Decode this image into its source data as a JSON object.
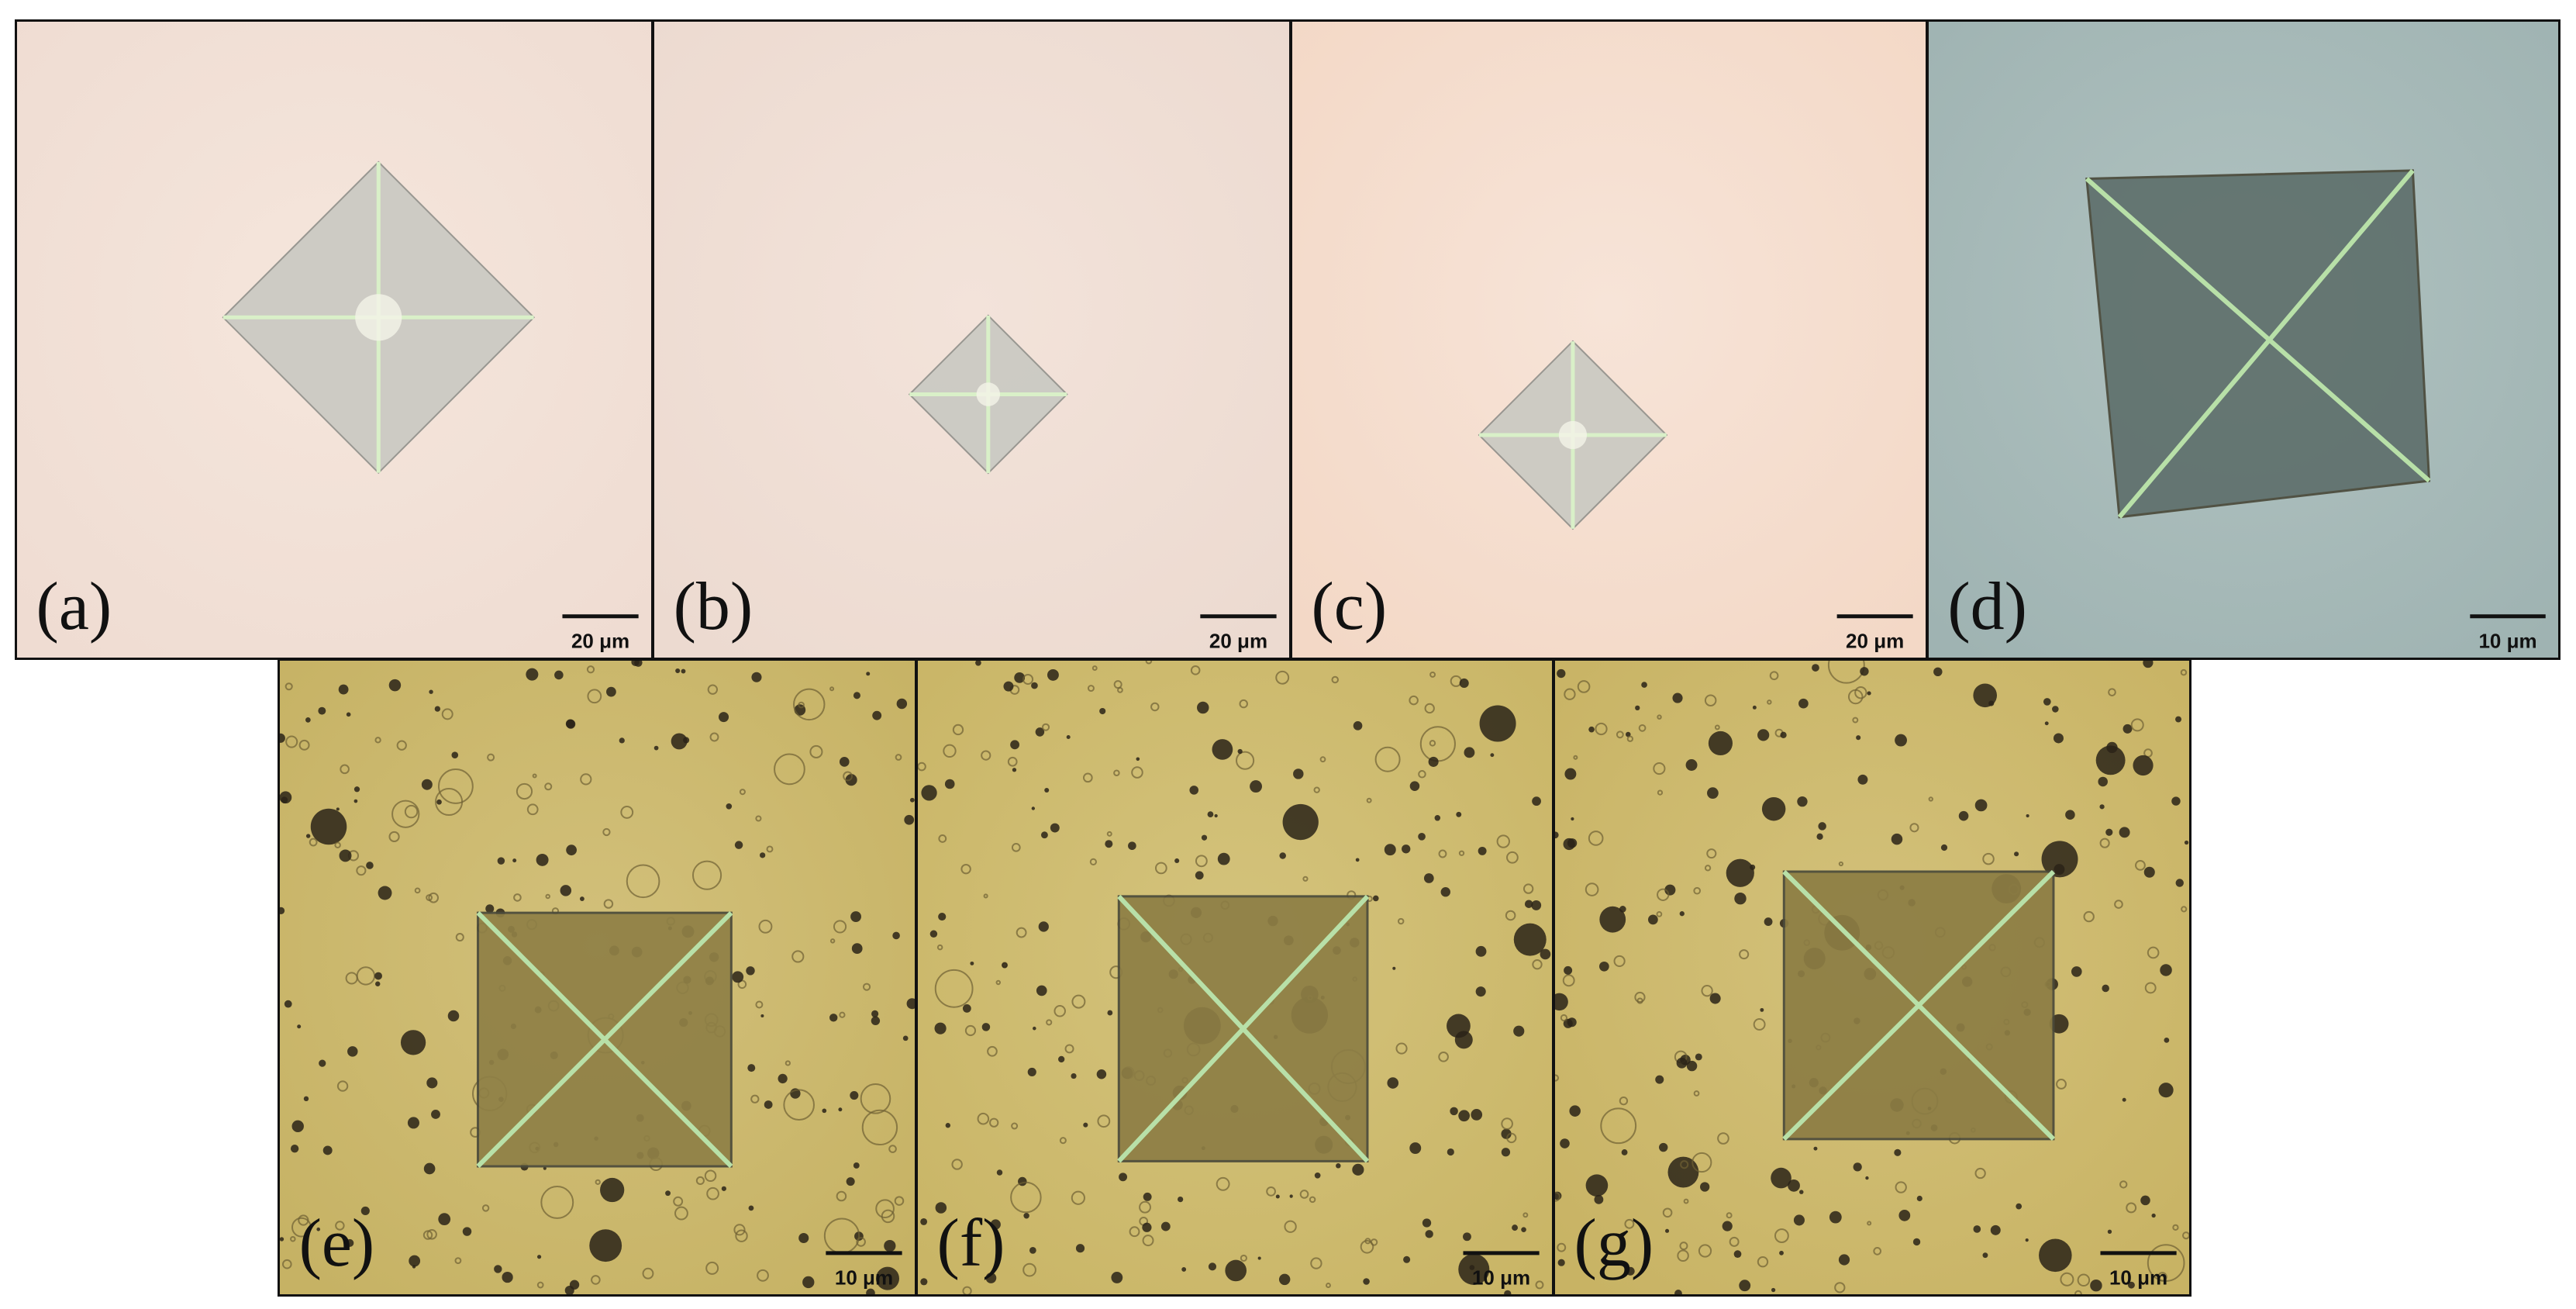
{
  "panels": [
    {
      "label": "(a)",
      "scale_bar": "20 μm"
    },
    {
      "label": "(b)",
      "scale_bar": "20 μm"
    },
    {
      "label": "(c)",
      "scale_bar": "20 μm"
    },
    {
      "label": "(d)",
      "scale_bar": "10 μm"
    },
    {
      "label": "(e)",
      "scale_bar": "10 μm"
    },
    {
      "label": "(f)",
      "scale_bar": "10 μm"
    },
    {
      "label": "(g)",
      "scale_bar": "10 μm"
    }
  ]
}
